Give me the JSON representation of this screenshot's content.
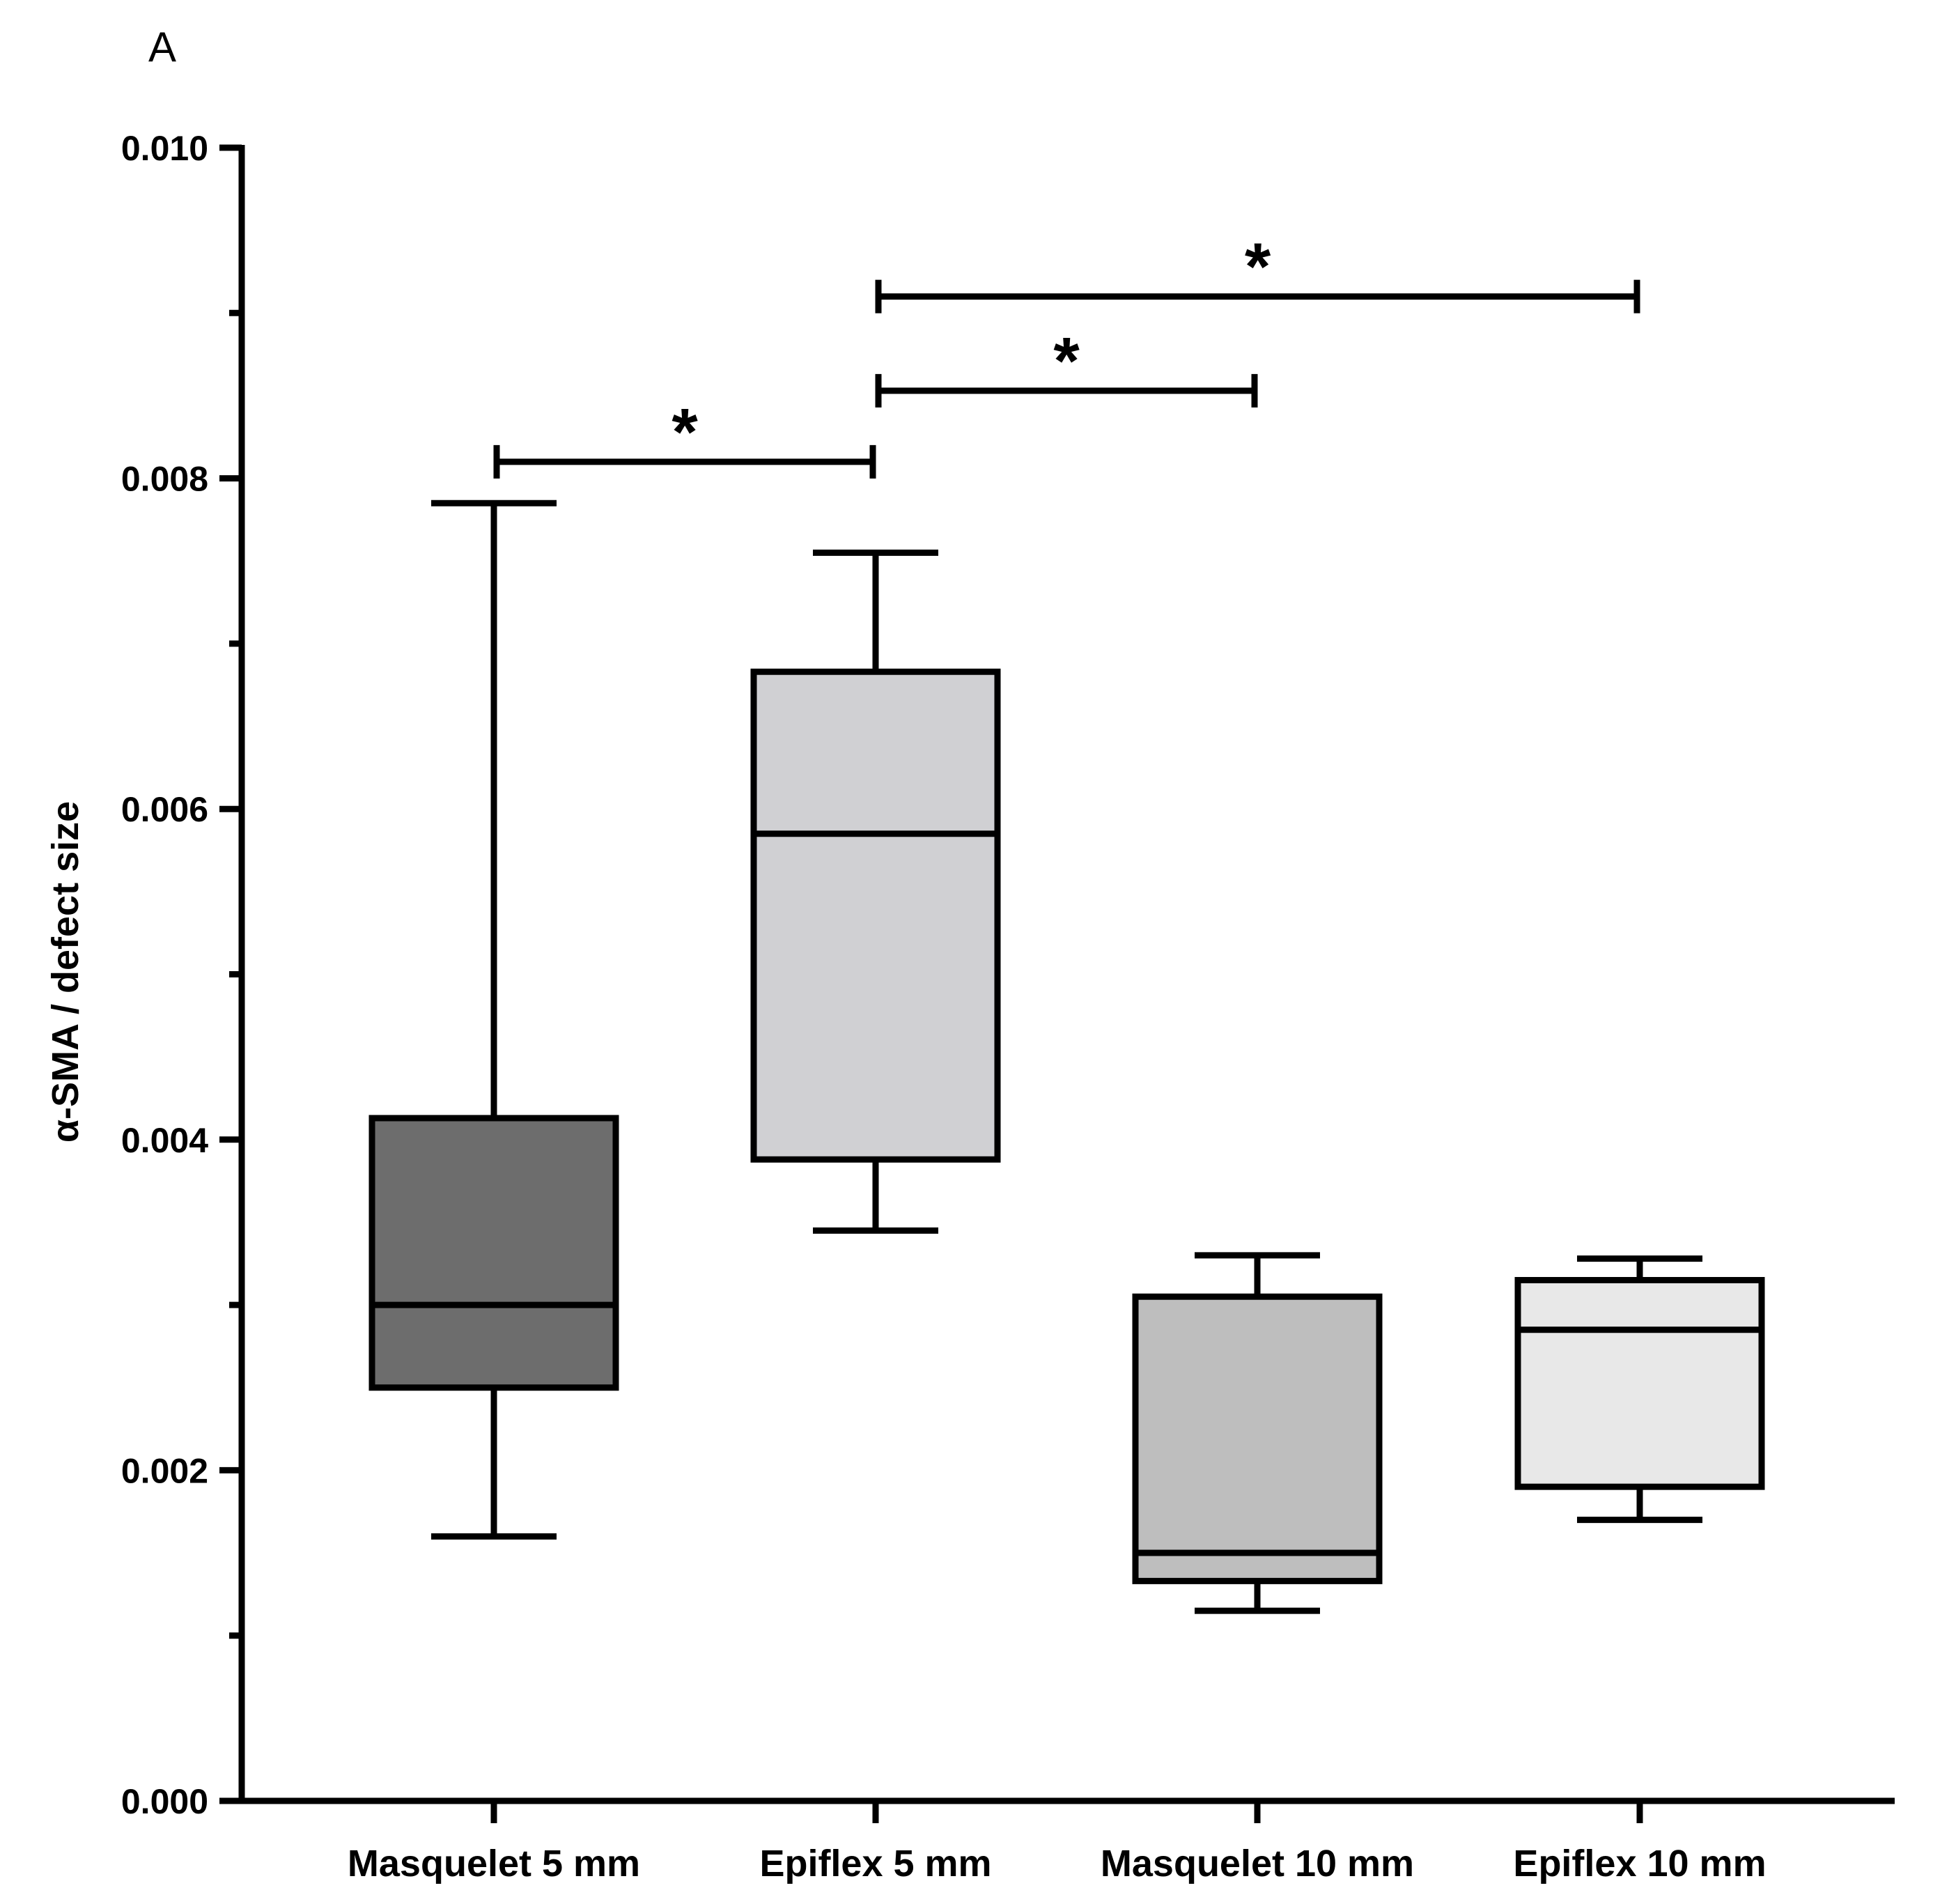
{
  "panel_label": "A",
  "chart_data": {
    "type": "box",
    "title": "",
    "xlabel": "",
    "ylabel": "α-SMA / defect size",
    "ylim": [
      0,
      0.01
    ],
    "yticks_major": [
      "0.000",
      "0.002",
      "0.004",
      "0.006",
      "0.008",
      "0.010"
    ],
    "yticks_major_values": [
      0,
      0.002,
      0.004,
      0.006,
      0.008,
      0.01
    ],
    "yticks_minor_values": [
      0.001,
      0.003,
      0.005,
      0.007,
      0.009
    ],
    "categories": [
      "Masquelet 5 mm",
      "Epiflex 5 mm",
      "Masquelet 10 mm",
      "Epiflex 10 mm"
    ],
    "series": [
      {
        "name": "Masquelet 5 mm",
        "min": 0.0016,
        "q1": 0.0025,
        "median": 0.003,
        "q3": 0.00413,
        "max": 0.00785,
        "color": "#6d6d6d"
      },
      {
        "name": "Epiflex 5 mm",
        "min": 0.00345,
        "q1": 0.00388,
        "median": 0.00585,
        "q3": 0.00683,
        "max": 0.00755,
        "color": "#d0d0d3"
      },
      {
        "name": "Masquelet 10 mm",
        "min": 0.00115,
        "q1": 0.00133,
        "median": 0.0015,
        "q3": 0.00305,
        "max": 0.0033,
        "color": "#bebebe"
      },
      {
        "name": "Epiflex 10 mm",
        "min": 0.0017,
        "q1": 0.0019,
        "median": 0.00285,
        "q3": 0.00315,
        "max": 0.00328,
        "color": "#e8e8e8"
      }
    ],
    "significance": [
      {
        "from": 0,
        "to": 1,
        "y": 0.0081,
        "label": "*"
      },
      {
        "from": 1,
        "to": 2,
        "y": 0.00853,
        "label": "*"
      },
      {
        "from": 1,
        "to": 3,
        "y": 0.0091,
        "label": "*"
      }
    ]
  }
}
